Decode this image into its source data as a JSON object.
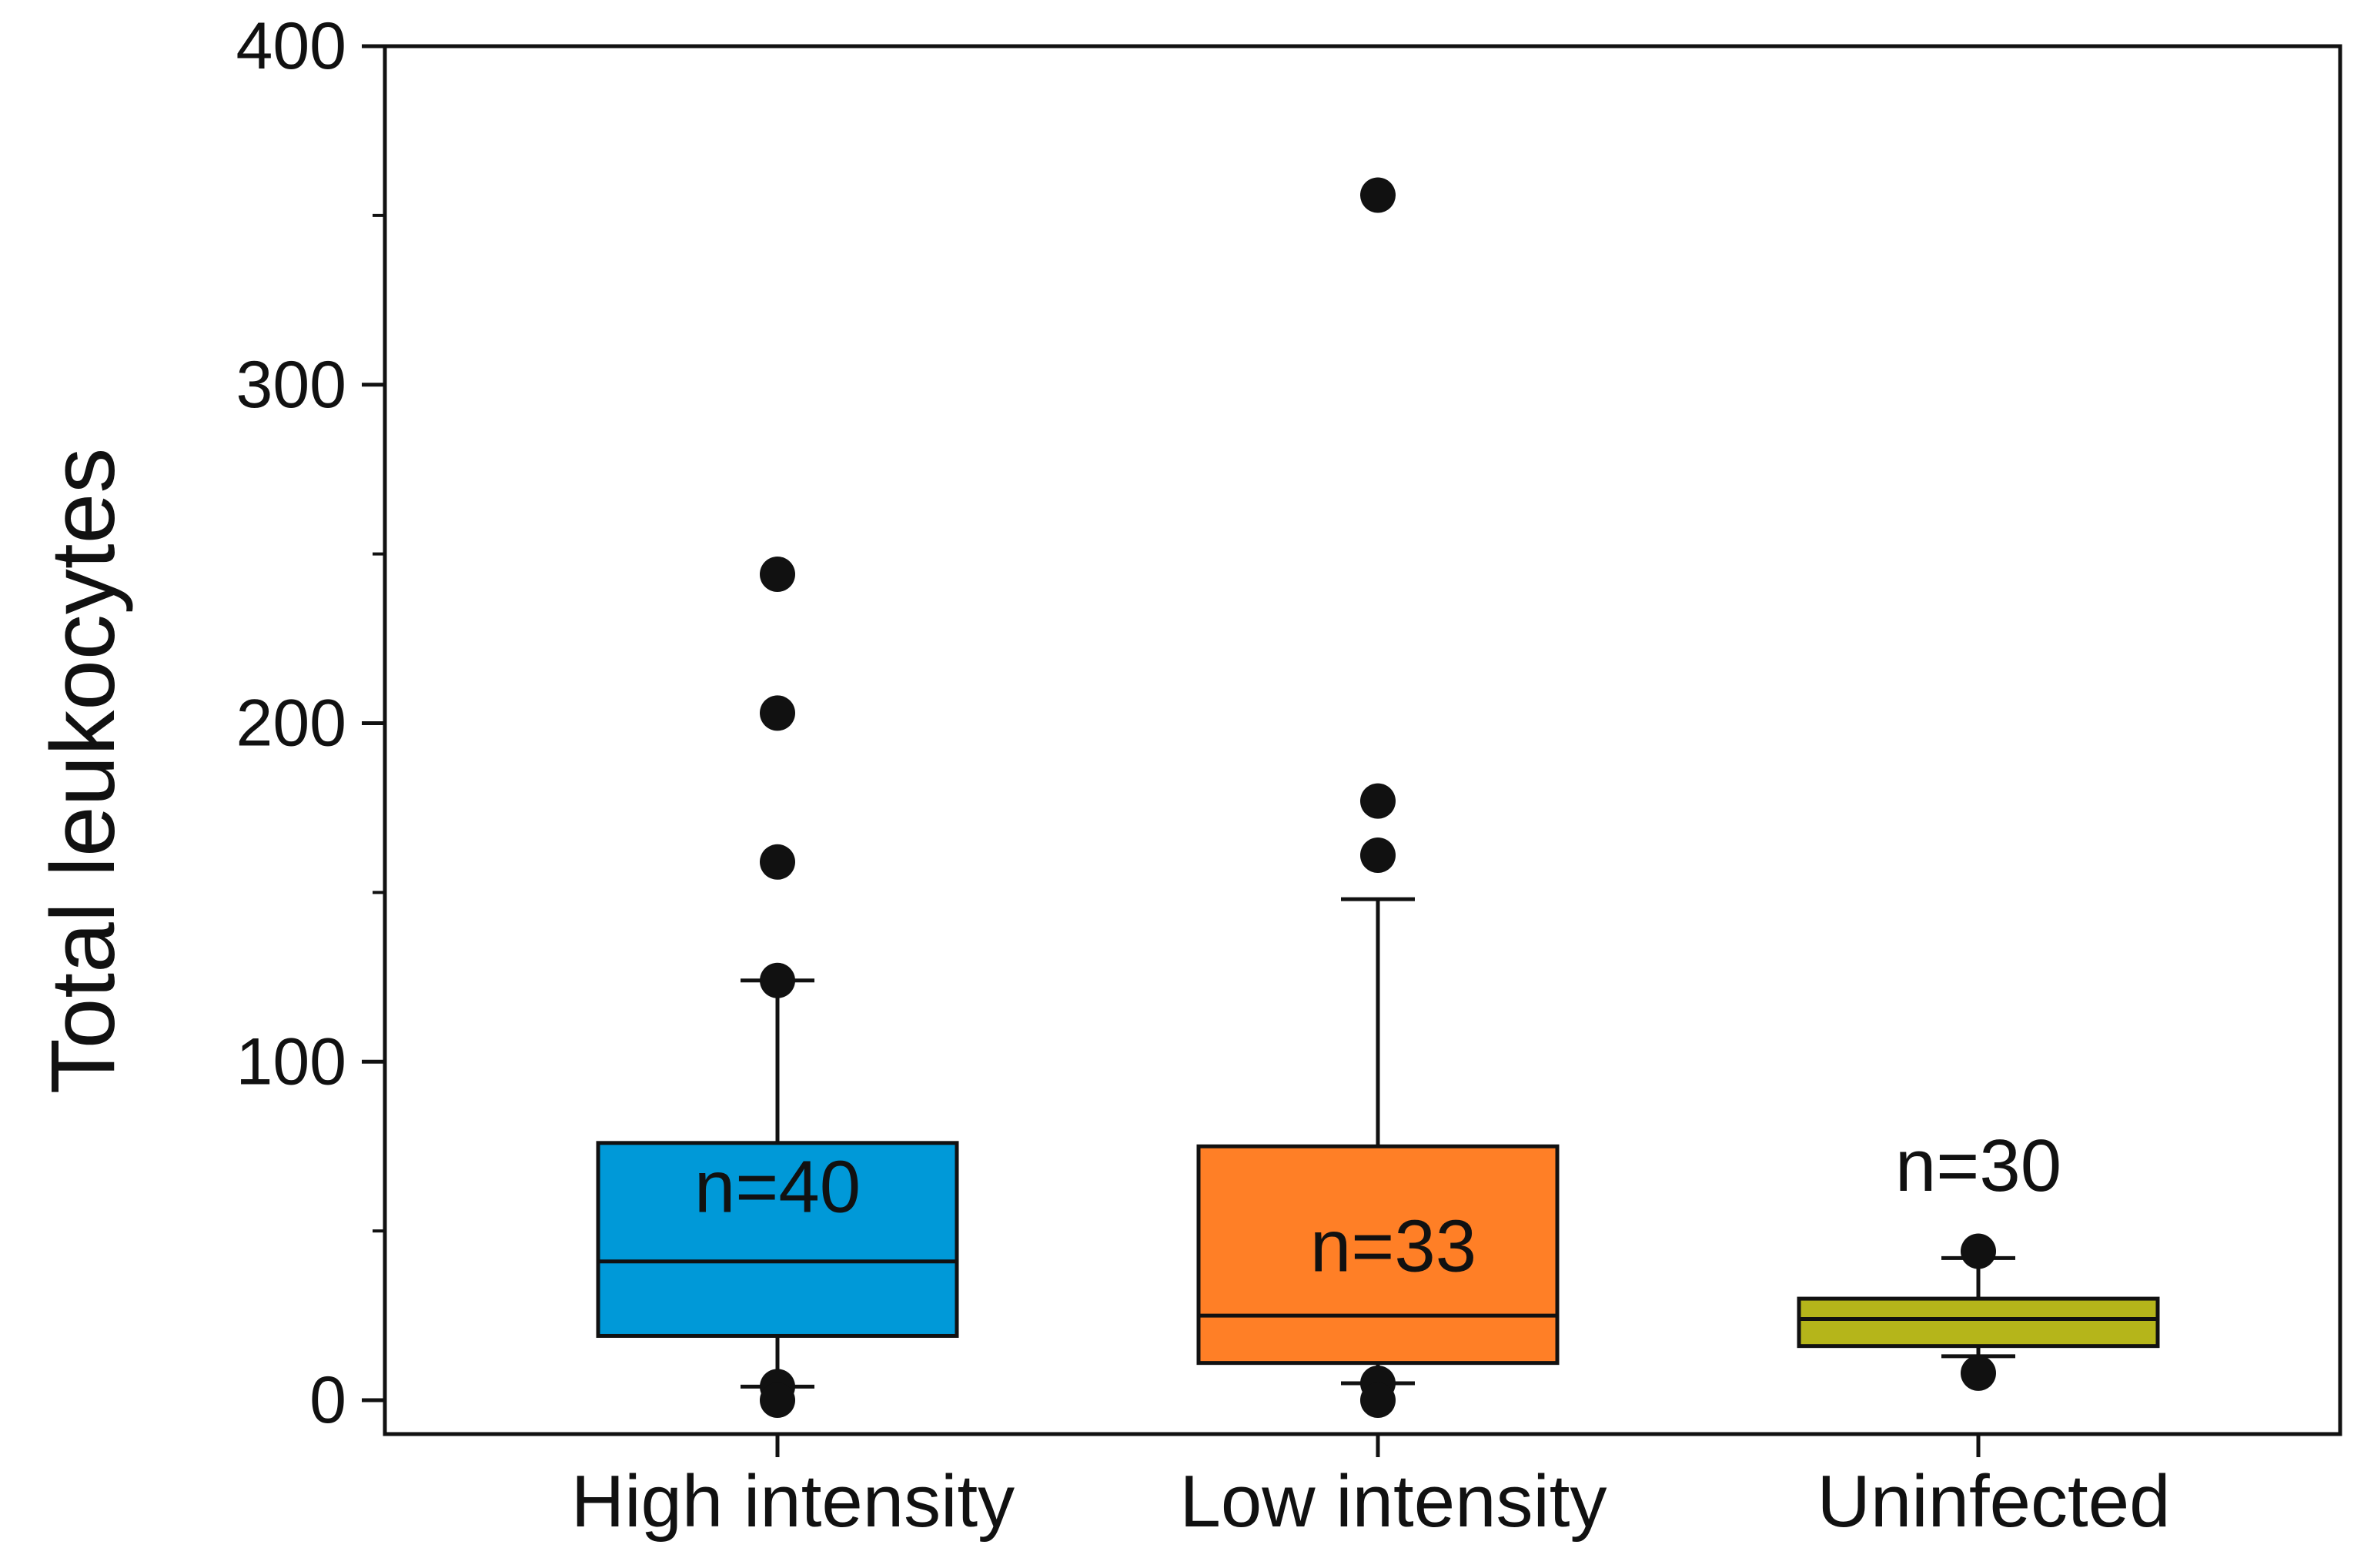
{
  "chart_data": {
    "type": "box",
    "title": "",
    "xlabel": "",
    "ylabel": "Total leukocytes",
    "ylim": [
      -10,
      400
    ],
    "yticks": [
      0,
      100,
      200,
      300,
      400
    ],
    "yminor": [
      50,
      150,
      250,
      350
    ],
    "grid": false,
    "legend": "none",
    "groups": [
      {
        "category": "High intensity",
        "n_label": "n=40",
        "n_label_position": "inside-box",
        "color": "#0099d8",
        "median": 41,
        "q1": 19,
        "q3": 76,
        "whisker_low": 4,
        "whisker_high": 124,
        "outliers": [
          244,
          203,
          159,
          124,
          4,
          0
        ]
      },
      {
        "category": "Low intensity",
        "n_label": "n=33",
        "n_label_position": "inside-box",
        "color": "#ff7f26",
        "median": 25,
        "q1": 11,
        "q3": 75,
        "whisker_low": 5,
        "whisker_high": 148,
        "outliers": [
          356,
          177,
          161,
          5,
          0
        ]
      },
      {
        "category": "Uninfected",
        "n_label": "n=30",
        "n_label_position": "above-box",
        "color": "#b5b51a",
        "median": 24,
        "q1": 16,
        "q3": 30,
        "whisker_low": 13,
        "whisker_high": 42,
        "outliers": [
          44,
          8
        ]
      }
    ]
  }
}
